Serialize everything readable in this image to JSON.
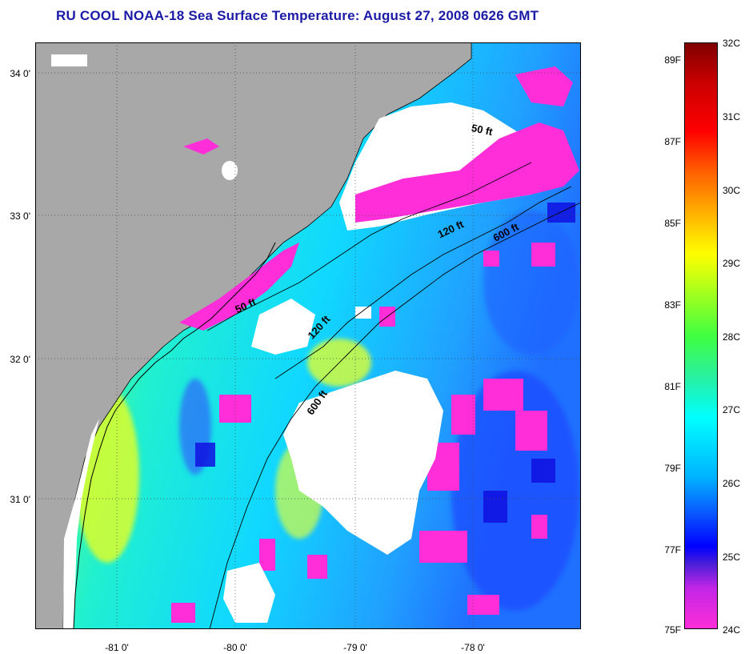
{
  "title": "RU COOL  NOAA-18  Sea Surface Temperature:  August 27, 2008 0626 GMT",
  "map": {
    "latitude_labels": [
      "34 0'",
      "33 0'",
      "32 0'",
      "31 0'"
    ],
    "longitude_labels": [
      "-81 0'",
      "-80 0'",
      "-79 0'",
      "-78 0'"
    ],
    "land_color": "#a8a8a8",
    "cloud_color": "#ffffff",
    "isobaths": [
      {
        "name": "50 ft",
        "labels": [
          "50 ft",
          "50 ft"
        ]
      },
      {
        "name": "120 ft",
        "labels": [
          "120 ft",
          "120 ft"
        ]
      },
      {
        "name": "600 ft",
        "labels": [
          "600 ft",
          "600 ft"
        ]
      }
    ]
  },
  "colorbar": {
    "fahrenheit_labels": [
      "89F",
      "87F",
      "85F",
      "83F",
      "81F",
      "79F",
      "77F",
      "75F"
    ],
    "celsius_labels": [
      "32C",
      "31C",
      "30C",
      "29C",
      "28C",
      "27C",
      "26C",
      "25C",
      "24C"
    ],
    "min_c": 24,
    "max_c": 32,
    "min_f": 75,
    "max_f": 89.6
  }
}
